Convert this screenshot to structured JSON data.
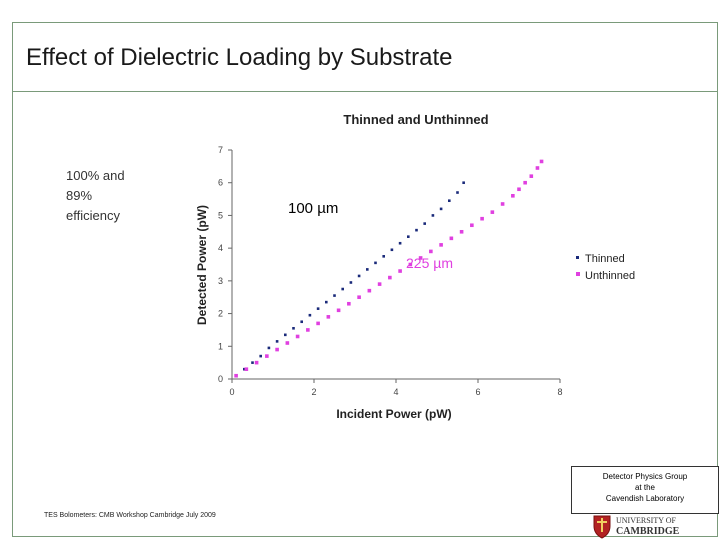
{
  "slide": {
    "title": "Effect of Dielectric Loading by Substrate",
    "efficiency_note": [
      "100% and",
      "89%",
      "efficiency"
    ],
    "footer_left": "TES Bolometers: CMB Workshop Cambridge July 2009",
    "group_lines": [
      "Detector Physics Group",
      "at the",
      "Cavendish Laboratory"
    ],
    "logo_text": [
      "UNIVERSITY OF",
      "CAMBRIDGE"
    ]
  },
  "colors": {
    "thinned": "#1a2a7a",
    "unthinned": "#e040e0",
    "frame": "#7a9a7a"
  },
  "chart_data": {
    "type": "scatter",
    "title": "Thinned and Unthinned",
    "xlabel": "Incident Power (pW)",
    "ylabel": "Detected Power (pW)",
    "xlim": [
      0,
      8
    ],
    "ylim": [
      0,
      7
    ],
    "xticks": [
      0,
      2,
      4,
      6,
      8
    ],
    "yticks": [
      0,
      1,
      2,
      3,
      4,
      5,
      6,
      7
    ],
    "grid": false,
    "legend_position": "right",
    "annotations": [
      "100 µm",
      "225 µm"
    ],
    "series": [
      {
        "name": "Thinned",
        "x": [
          0.1,
          0.3,
          0.5,
          0.7,
          0.9,
          1.1,
          1.3,
          1.5,
          1.7,
          1.9,
          2.1,
          2.3,
          2.5,
          2.7,
          2.9,
          3.1,
          3.3,
          3.5,
          3.7,
          3.9,
          4.1,
          4.3,
          4.5,
          4.7,
          4.9,
          5.1,
          5.3,
          5.5,
          5.65
        ],
        "y": [
          0.1,
          0.3,
          0.5,
          0.7,
          0.95,
          1.15,
          1.35,
          1.55,
          1.75,
          1.95,
          2.15,
          2.35,
          2.55,
          2.75,
          2.95,
          3.15,
          3.35,
          3.55,
          3.75,
          3.95,
          4.15,
          4.35,
          4.55,
          4.75,
          5.0,
          5.2,
          5.45,
          5.7,
          6.0
        ]
      },
      {
        "name": "Unthinned",
        "x": [
          0.1,
          0.35,
          0.6,
          0.85,
          1.1,
          1.35,
          1.6,
          1.85,
          2.1,
          2.35,
          2.6,
          2.85,
          3.1,
          3.35,
          3.6,
          3.85,
          4.1,
          4.35,
          4.6,
          4.85,
          5.1,
          5.35,
          5.6,
          5.85,
          6.1,
          6.35,
          6.6,
          6.85,
          7.0,
          7.15,
          7.3,
          7.45,
          7.55
        ],
        "y": [
          0.1,
          0.3,
          0.5,
          0.7,
          0.9,
          1.1,
          1.3,
          1.5,
          1.7,
          1.9,
          2.1,
          2.3,
          2.5,
          2.7,
          2.9,
          3.1,
          3.3,
          3.5,
          3.7,
          3.9,
          4.1,
          4.3,
          4.5,
          4.7,
          4.9,
          5.1,
          5.35,
          5.6,
          5.8,
          6.0,
          6.2,
          6.45,
          6.65
        ]
      }
    ]
  }
}
